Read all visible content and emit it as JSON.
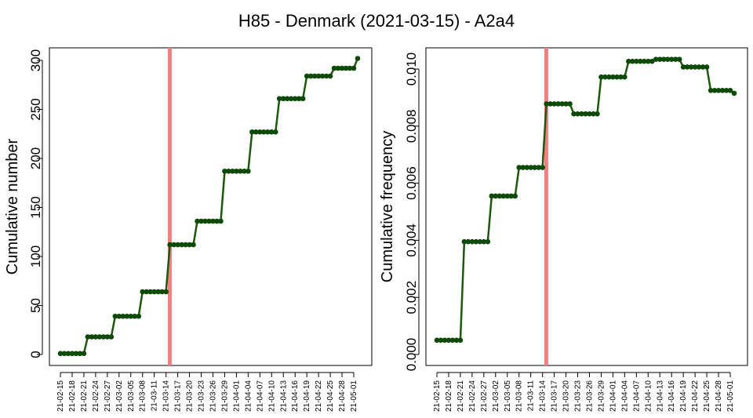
{
  "title": "H85 - Denmark (2021-03-15) - A2a4",
  "colors": {
    "series": "#1a5a0a",
    "marker": "#0d4a05",
    "vline": "#f28080"
  },
  "x_tick_labels": [
    "21-02-15",
    "21-02-18",
    "21-02-21",
    "21-02-24",
    "21-02-27",
    "21-03-02",
    "21-03-05",
    "21-03-08",
    "21-03-11",
    "21-03-14",
    "21-03-17",
    "21-03-20",
    "21-03-23",
    "21-03-26",
    "21-03-29",
    "21-04-01",
    "21-04-04",
    "21-04-07",
    "21-04-10",
    "21-04-13",
    "21-04-16",
    "21-04-19",
    "21-04-22",
    "21-04-25",
    "21-04-28",
    "21-05-01"
  ],
  "chart_data": [
    {
      "type": "line",
      "ylabel": "Cumulative number",
      "ylim": [
        0,
        300
      ],
      "y_ticks": [
        "0",
        "50",
        "100",
        "150",
        "200",
        "250",
        "300"
      ],
      "vline_x": "2021-03-15",
      "grid": false,
      "x_start": "2021-02-15",
      "values": [
        1,
        1,
        1,
        1,
        1,
        1,
        1,
        18,
        18,
        18,
        18,
        18,
        18,
        18,
        39,
        39,
        39,
        39,
        39,
        39,
        39,
        64,
        64,
        64,
        64,
        64,
        64,
        64,
        112,
        112,
        112,
        112,
        112,
        112,
        112,
        136,
        136,
        136,
        136,
        136,
        136,
        136,
        187,
        187,
        187,
        187,
        187,
        187,
        187,
        227,
        227,
        227,
        227,
        227,
        227,
        227,
        261,
        261,
        261,
        261,
        261,
        261,
        261,
        284,
        284,
        284,
        284,
        284,
        284,
        284,
        292,
        292,
        292,
        292,
        292,
        292,
        302
      ]
    },
    {
      "type": "line",
      "ylabel": "Cumulative frequency",
      "ylim": [
        0,
        0.0104
      ],
      "y_ticks": [
        "0.000",
        "0.002",
        "0.004",
        "0.006",
        "0.008",
        "0.010"
      ],
      "vline_x": "2021-03-15",
      "grid": false,
      "x_start": "2021-02-15",
      "values": [
        0.0005,
        0.0005,
        0.0005,
        0.0005,
        0.0005,
        0.0005,
        0.0005,
        0.00395,
        0.00395,
        0.00395,
        0.00395,
        0.00395,
        0.00395,
        0.00395,
        0.00555,
        0.00555,
        0.00555,
        0.00555,
        0.00555,
        0.00555,
        0.00555,
        0.00655,
        0.00655,
        0.00655,
        0.00655,
        0.00655,
        0.00655,
        0.00655,
        0.00878,
        0.00878,
        0.00878,
        0.00878,
        0.00878,
        0.00878,
        0.00878,
        0.00843,
        0.00843,
        0.00843,
        0.00843,
        0.00843,
        0.00843,
        0.00843,
        0.00972,
        0.00972,
        0.00972,
        0.00972,
        0.00972,
        0.00972,
        0.00972,
        0.01027,
        0.01027,
        0.01027,
        0.01027,
        0.01027,
        0.01027,
        0.01027,
        0.01034,
        0.01034,
        0.01034,
        0.01034,
        0.01034,
        0.01034,
        0.01034,
        0.01007,
        0.01007,
        0.01007,
        0.01007,
        0.01007,
        0.01007,
        0.01007,
        0.00925,
        0.00925,
        0.00925,
        0.00925,
        0.00925,
        0.00925,
        0.00915
      ]
    }
  ]
}
